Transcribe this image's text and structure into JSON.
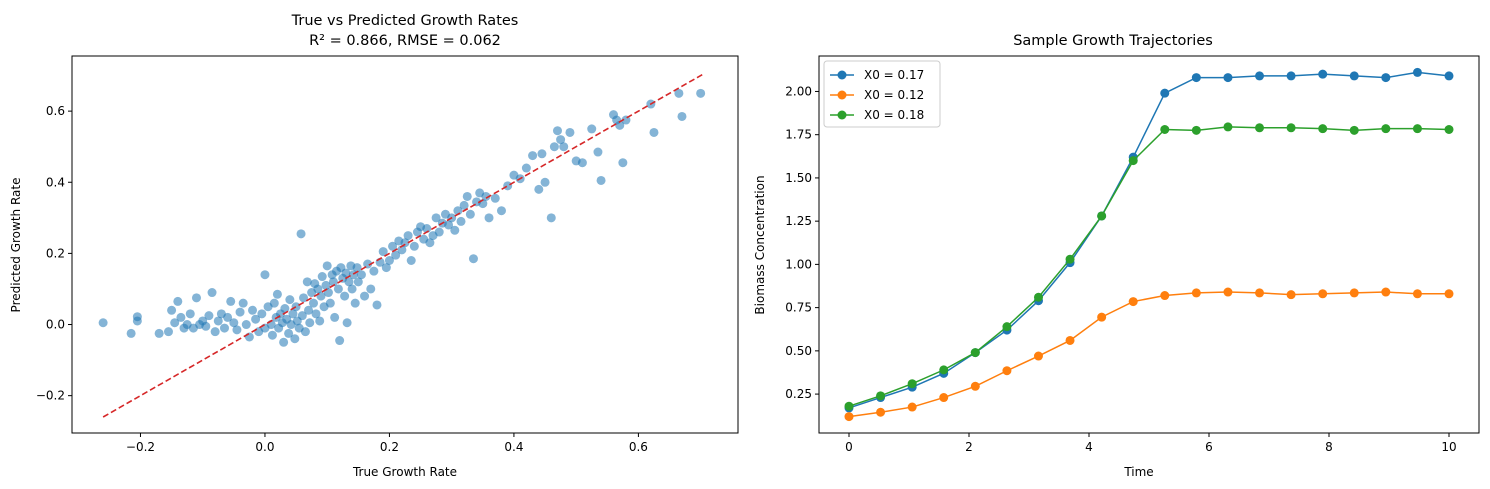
{
  "chart_data": [
    {
      "type": "scatter",
      "title": "True vs Predicted Growth Rates",
      "subtitle": "R² = 0.866, RMSE = 0.062",
      "xlabel": "True Growth Rate",
      "ylabel": "Predicted Growth Rate",
      "xlim": [
        -0.31,
        0.76
      ],
      "ylim": [
        -0.305,
        0.755
      ],
      "xticks": [
        -0.2,
        0.0,
        0.2,
        0.4,
        0.6
      ],
      "xtick_labels": [
        "−0.2",
        "0.0",
        "0.2",
        "0.4",
        "0.6"
      ],
      "yticks": [
        -0.2,
        0.0,
        0.2,
        0.4,
        0.6
      ],
      "ytick_labels": [
        "−0.2",
        "0.0",
        "0.2",
        "0.4",
        "0.6"
      ],
      "grid": false,
      "point_color": "#1f77b4",
      "point_alpha": 0.55,
      "reference_line": {
        "x": [
          -0.26,
          0.705
        ],
        "y": [
          -0.26,
          0.705
        ],
        "color": "#d62728",
        "style": "dashed"
      },
      "points": [
        [
          -0.26,
          0.005
        ],
        [
          -0.215,
          -0.025
        ],
        [
          -0.205,
          0.01
        ],
        [
          -0.205,
          0.022
        ],
        [
          -0.17,
          -0.025
        ],
        [
          -0.155,
          -0.02
        ],
        [
          -0.15,
          0.04
        ],
        [
          -0.145,
          0.005
        ],
        [
          -0.14,
          0.065
        ],
        [
          -0.135,
          0.02
        ],
        [
          -0.13,
          -0.01
        ],
        [
          -0.125,
          0.0
        ],
        [
          -0.12,
          0.03
        ],
        [
          -0.115,
          -0.01
        ],
        [
          -0.11,
          0.075
        ],
        [
          -0.105,
          0.0
        ],
        [
          -0.1,
          0.01
        ],
        [
          -0.095,
          -0.005
        ],
        [
          -0.09,
          0.025
        ],
        [
          -0.085,
          0.09
        ],
        [
          -0.08,
          -0.02
        ],
        [
          -0.075,
          0.01
        ],
        [
          -0.07,
          0.03
        ],
        [
          -0.065,
          -0.01
        ],
        [
          -0.06,
          0.02
        ],
        [
          -0.055,
          0.065
        ],
        [
          -0.05,
          0.005
        ],
        [
          -0.045,
          -0.015
        ],
        [
          -0.04,
          0.035
        ],
        [
          -0.035,
          0.06
        ],
        [
          -0.03,
          0.0
        ],
        [
          -0.025,
          -0.035
        ],
        [
          -0.02,
          0.04
        ],
        [
          -0.015,
          0.015
        ],
        [
          -0.01,
          -0.02
        ],
        [
          -0.005,
          0.03
        ],
        [
          0.0,
          0.14
        ],
        [
          0.0,
          -0.01
        ],
        [
          0.005,
          0.05
        ],
        [
          0.01,
          0.0
        ],
        [
          0.012,
          -0.03
        ],
        [
          0.015,
          0.06
        ],
        [
          0.018,
          0.02
        ],
        [
          0.02,
          0.085
        ],
        [
          0.022,
          -0.01
        ],
        [
          0.025,
          0.03
        ],
        [
          0.028,
          0.005
        ],
        [
          0.03,
          -0.05
        ],
        [
          0.032,
          0.045
        ],
        [
          0.035,
          0.015
        ],
        [
          0.038,
          -0.025
        ],
        [
          0.04,
          0.07
        ],
        [
          0.042,
          0.0
        ],
        [
          0.045,
          0.03
        ],
        [
          0.048,
          -0.04
        ],
        [
          0.05,
          0.05
        ],
        [
          0.052,
          0.01
        ],
        [
          0.055,
          -0.01
        ],
        [
          0.058,
          0.255
        ],
        [
          0.06,
          0.025
        ],
        [
          0.062,
          0.075
        ],
        [
          0.065,
          -0.02
        ],
        [
          0.068,
          0.12
        ],
        [
          0.07,
          0.04
        ],
        [
          0.072,
          0.005
        ],
        [
          0.075,
          0.09
        ],
        [
          0.078,
          0.06
        ],
        [
          0.08,
          0.115
        ],
        [
          0.082,
          0.03
        ],
        [
          0.085,
          0.1
        ],
        [
          0.088,
          0.01
        ],
        [
          0.09,
          0.08
        ],
        [
          0.092,
          0.135
        ],
        [
          0.095,
          0.05
        ],
        [
          0.098,
          0.11
        ],
        [
          0.1,
          0.165
        ],
        [
          0.102,
          0.09
        ],
        [
          0.105,
          0.06
        ],
        [
          0.108,
          0.14
        ],
        [
          0.11,
          0.12
        ],
        [
          0.112,
          0.02
        ],
        [
          0.115,
          0.15
        ],
        [
          0.118,
          0.1
        ],
        [
          0.12,
          -0.045
        ],
        [
          0.122,
          0.16
        ],
        [
          0.125,
          0.13
        ],
        [
          0.128,
          0.08
        ],
        [
          0.13,
          0.145
        ],
        [
          0.132,
          0.005
        ],
        [
          0.135,
          0.12
        ],
        [
          0.138,
          0.165
        ],
        [
          0.14,
          0.1
        ],
        [
          0.142,
          0.14
        ],
        [
          0.145,
          0.06
        ],
        [
          0.148,
          0.16
        ],
        [
          0.15,
          0.12
        ],
        [
          0.155,
          0.14
        ],
        [
          0.16,
          0.08
        ],
        [
          0.165,
          0.17
        ],
        [
          0.17,
          0.1
        ],
        [
          0.175,
          0.15
        ],
        [
          0.18,
          0.055
        ],
        [
          0.185,
          0.175
        ],
        [
          0.19,
          0.205
        ],
        [
          0.195,
          0.16
        ],
        [
          0.2,
          0.18
        ],
        [
          0.205,
          0.22
        ],
        [
          0.21,
          0.195
        ],
        [
          0.215,
          0.235
        ],
        [
          0.22,
          0.21
        ],
        [
          0.225,
          0.23
        ],
        [
          0.23,
          0.25
        ],
        [
          0.235,
          0.18
        ],
        [
          0.24,
          0.22
        ],
        [
          0.245,
          0.26
        ],
        [
          0.25,
          0.275
        ],
        [
          0.255,
          0.24
        ],
        [
          0.26,
          0.27
        ],
        [
          0.265,
          0.23
        ],
        [
          0.27,
          0.25
        ],
        [
          0.275,
          0.3
        ],
        [
          0.28,
          0.26
        ],
        [
          0.285,
          0.285
        ],
        [
          0.29,
          0.31
        ],
        [
          0.295,
          0.28
        ],
        [
          0.3,
          0.3
        ],
        [
          0.305,
          0.265
        ],
        [
          0.31,
          0.32
        ],
        [
          0.315,
          0.29
        ],
        [
          0.32,
          0.335
        ],
        [
          0.325,
          0.36
        ],
        [
          0.33,
          0.31
        ],
        [
          0.335,
          0.185
        ],
        [
          0.34,
          0.345
        ],
        [
          0.345,
          0.37
        ],
        [
          0.35,
          0.34
        ],
        [
          0.355,
          0.36
        ],
        [
          0.36,
          0.3
        ],
        [
          0.37,
          0.355
        ],
        [
          0.38,
          0.32
        ],
        [
          0.39,
          0.39
        ],
        [
          0.4,
          0.42
        ],
        [
          0.41,
          0.41
        ],
        [
          0.42,
          0.44
        ],
        [
          0.43,
          0.475
        ],
        [
          0.44,
          0.38
        ],
        [
          0.445,
          0.48
        ],
        [
          0.45,
          0.4
        ],
        [
          0.46,
          0.3
        ],
        [
          0.465,
          0.5
        ],
        [
          0.47,
          0.545
        ],
        [
          0.475,
          0.52
        ],
        [
          0.48,
          0.5
        ],
        [
          0.49,
          0.54
        ],
        [
          0.5,
          0.46
        ],
        [
          0.51,
          0.455
        ],
        [
          0.525,
          0.55
        ],
        [
          0.535,
          0.485
        ],
        [
          0.54,
          0.405
        ],
        [
          0.56,
          0.59
        ],
        [
          0.565,
          0.575
        ],
        [
          0.57,
          0.56
        ],
        [
          0.575,
          0.455
        ],
        [
          0.58,
          0.575
        ],
        [
          0.62,
          0.62
        ],
        [
          0.625,
          0.54
        ],
        [
          0.665,
          0.65
        ],
        [
          0.67,
          0.585
        ],
        [
          0.7,
          0.65
        ]
      ]
    },
    {
      "type": "line",
      "title": "Sample Growth Trajectories",
      "xlabel": "Time",
      "ylabel": "Biomass Concentration",
      "xlim": [
        -0.5,
        10.5
      ],
      "ylim": [
        0.025,
        2.205
      ],
      "xticks": [
        0,
        2,
        4,
        6,
        8,
        10
      ],
      "xtick_labels": [
        "0",
        "2",
        "4",
        "6",
        "8",
        "10"
      ],
      "yticks": [
        0.25,
        0.5,
        0.75,
        1.0,
        1.25,
        1.5,
        1.75,
        2.0
      ],
      "ytick_labels": [
        "0.25",
        "0.50",
        "0.75",
        "1.00",
        "1.25",
        "1.50",
        "1.75",
        "2.00"
      ],
      "grid": false,
      "legend_position": "top-left",
      "x": [
        0,
        0.526,
        1.053,
        1.579,
        2.105,
        2.632,
        3.158,
        3.684,
        4.211,
        4.737,
        5.263,
        5.789,
        6.316,
        6.842,
        7.368,
        7.895,
        8.421,
        8.947,
        9.474,
        10.0
      ],
      "series": [
        {
          "name": "X0 = 0.17",
          "color": "#1f77b4",
          "values": [
            0.17,
            0.23,
            0.29,
            0.37,
            0.49,
            0.62,
            0.79,
            1.01,
            1.28,
            1.62,
            1.99,
            2.08,
            2.08,
            2.09,
            2.09,
            2.1,
            2.09,
            2.08,
            2.11,
            2.09
          ]
        },
        {
          "name": "X0 = 0.12",
          "color": "#ff7f0e",
          "values": [
            0.12,
            0.145,
            0.175,
            0.23,
            0.295,
            0.385,
            0.47,
            0.56,
            0.695,
            0.785,
            0.82,
            0.835,
            0.84,
            0.835,
            0.825,
            0.83,
            0.835,
            0.84,
            0.83,
            0.83
          ]
        },
        {
          "name": "X0 = 0.18",
          "color": "#2ca02c",
          "values": [
            0.18,
            0.24,
            0.31,
            0.39,
            0.49,
            0.64,
            0.81,
            1.03,
            1.28,
            1.6,
            1.78,
            1.775,
            1.795,
            1.79,
            1.79,
            1.785,
            1.775,
            1.785,
            1.785,
            1.78
          ]
        }
      ]
    }
  ]
}
